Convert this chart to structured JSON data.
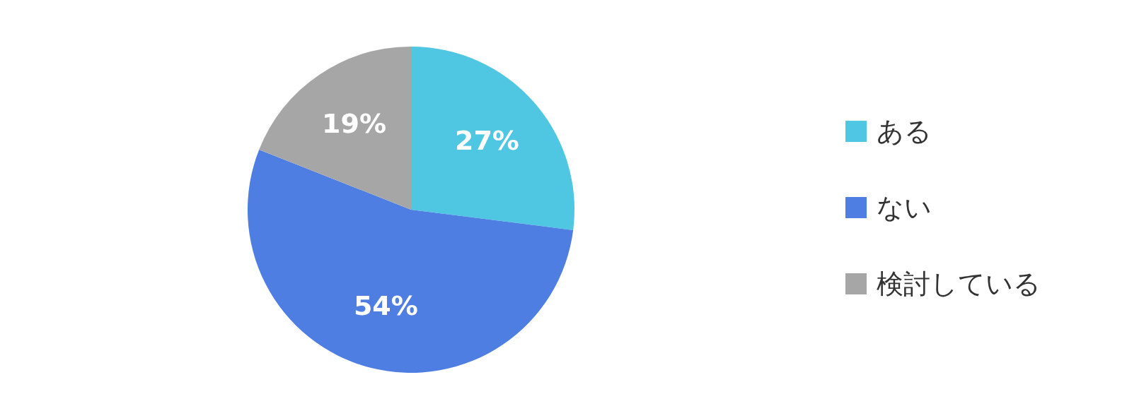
{
  "chart_data": {
    "type": "pie",
    "categories": [
      "ある",
      "ない",
      "検討している"
    ],
    "values": [
      27,
      54,
      19
    ],
    "colors": [
      "#4fc6e2",
      "#4f7ee2",
      "#a6a6a6"
    ],
    "value_labels": [
      "27%",
      "54%",
      "19%"
    ],
    "legend": "right"
  }
}
